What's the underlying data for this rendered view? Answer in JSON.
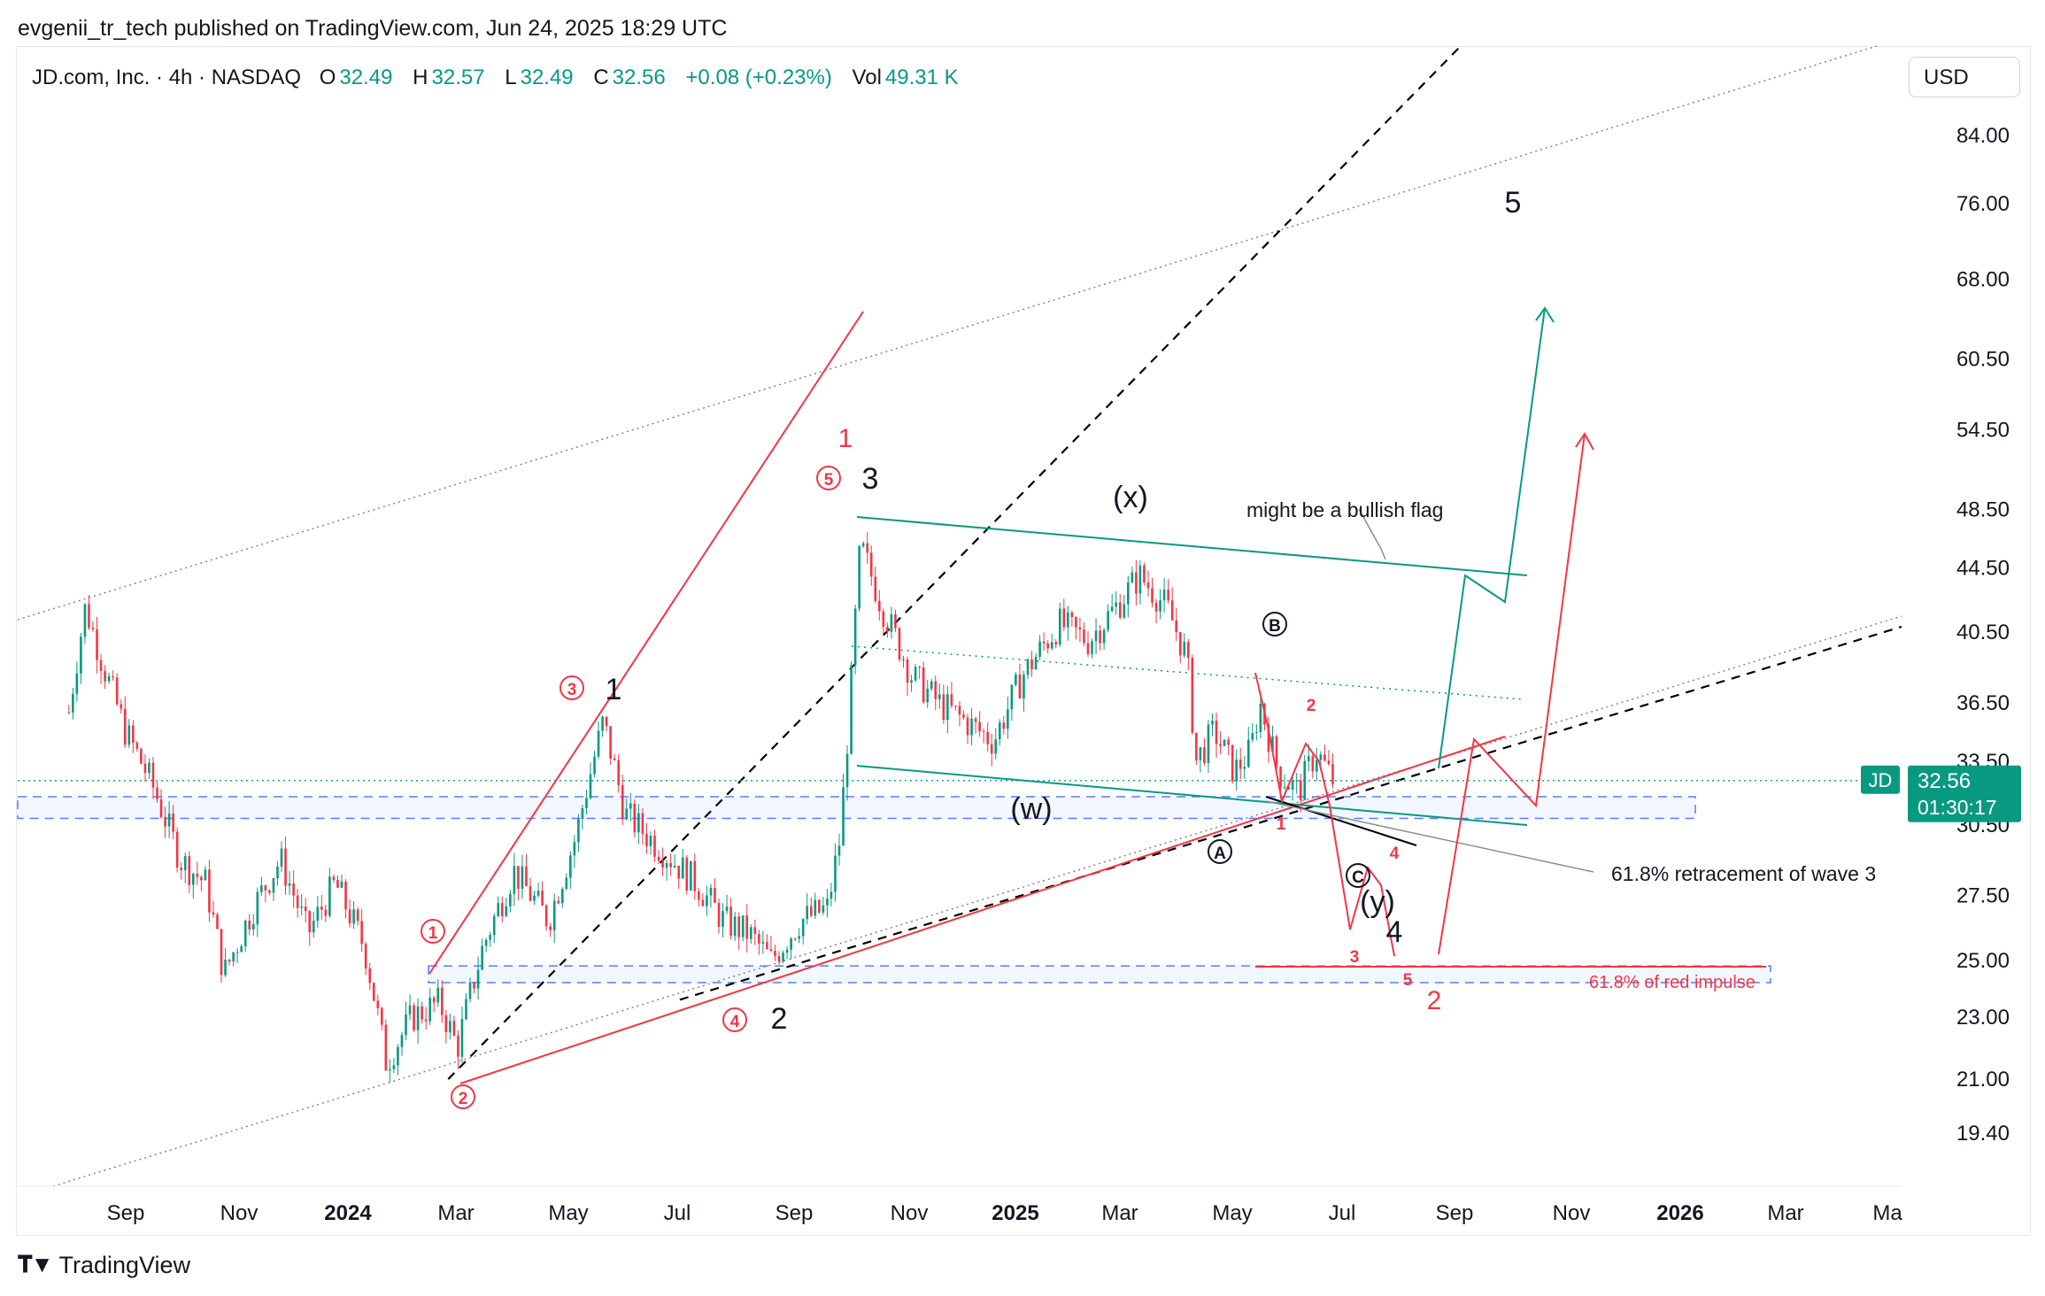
{
  "publish_line": "evgenii_tr_tech published on TradingView.com, Jun 24, 2025 18:29 UTC",
  "legend": {
    "symbol": "JD.com, Inc. · 4h · NASDAQ",
    "open_label": "O",
    "open": "32.49",
    "high_label": "H",
    "high": "32.57",
    "low_label": "L",
    "low": "32.49",
    "close_label": "C",
    "close": "32.56",
    "change": "+0.08 (+0.23%)",
    "vol_label": "Vol",
    "vol": "49.31 K"
  },
  "currency_button": "USD",
  "brand": "TradingView",
  "colors": {
    "up": "#089981",
    "down": "#f23645",
    "red_wave": "#f23645",
    "teal": "#089981",
    "blue_zone": "#2962ff"
  },
  "chart_data": {
    "type": "candlestick",
    "timeframe": "4h",
    "y_scale": "log",
    "ylim": [
      18.0,
      93.0
    ],
    "y_ticks": [
      "84.00",
      "76.00",
      "68.00",
      "60.50",
      "54.50",
      "48.50",
      "44.50",
      "40.50",
      "36.50",
      "33.50",
      "30.50",
      "27.50",
      "25.00",
      "23.00",
      "21.00",
      "19.40"
    ],
    "x_ticks": [
      "Sep",
      "Nov",
      "2024",
      "Mar",
      "May",
      "Jul",
      "Sep",
      "Nov",
      "2025",
      "Mar",
      "May",
      "Jul",
      "Sep",
      "Nov",
      "2026",
      "Mar",
      "Ma"
    ],
    "bold_x_ticks": [
      "2024",
      "2025",
      "2026"
    ],
    "last_price_label": {
      "symbol": "JD",
      "price": "32.56",
      "countdown": "01:30:17"
    },
    "price_path": [
      [
        "2023-08-01",
        36.0
      ],
      [
        "2023-08-10",
        42.0
      ],
      [
        "2023-08-20",
        38.5
      ],
      [
        "2023-09-01",
        35.0
      ],
      [
        "2023-09-15",
        32.5
      ],
      [
        "2023-10-01",
        29.0
      ],
      [
        "2023-10-15",
        28.0
      ],
      [
        "2023-10-25",
        24.5
      ],
      [
        "2023-11-10",
        27.0
      ],
      [
        "2023-11-25",
        29.0
      ],
      [
        "2023-12-10",
        26.0
      ],
      [
        "2023-12-25",
        28.0
      ],
      [
        "2024-01-10",
        25.5
      ],
      [
        "2024-01-22",
        21.5
      ],
      [
        "2024-02-05",
        23.0
      ],
      [
        "2024-02-20",
        23.5
      ],
      [
        "2024-03-01",
        22.0
      ],
      [
        "2024-03-15",
        25.5
      ],
      [
        "2024-04-01",
        28.5
      ],
      [
        "2024-04-20",
        26.5
      ],
      [
        "2024-05-05",
        30.0
      ],
      [
        "2024-05-20",
        35.5
      ],
      [
        "2024-06-01",
        31.0
      ],
      [
        "2024-06-20",
        29.5
      ],
      [
        "2024-07-10",
        28.0
      ],
      [
        "2024-07-25",
        26.5
      ],
      [
        "2024-08-08",
        26.0
      ],
      [
        "2024-08-20",
        25.0
      ],
      [
        "2024-09-05",
        26.5
      ],
      [
        "2024-09-20",
        27.0
      ],
      [
        "2024-09-27",
        30.0
      ],
      [
        "2024-10-02",
        36.0
      ],
      [
        "2024-10-08",
        46.0
      ],
      [
        "2024-10-20",
        42.0
      ],
      [
        "2024-11-05",
        38.0
      ],
      [
        "2024-11-20",
        36.5
      ],
      [
        "2024-12-05",
        35.5
      ],
      [
        "2024-12-20",
        34.5
      ],
      [
        "2025-01-05",
        38.0
      ],
      [
        "2025-01-25",
        41.0
      ],
      [
        "2025-02-10",
        40.0
      ],
      [
        "2025-02-25",
        42.0
      ],
      [
        "2025-03-10",
        44.0
      ],
      [
        "2025-03-25",
        42.0
      ],
      [
        "2025-04-05",
        39.0
      ],
      [
        "2025-04-10",
        33.5
      ],
      [
        "2025-04-20",
        35.0
      ],
      [
        "2025-05-01",
        33.0
      ],
      [
        "2025-05-10",
        34.0
      ],
      [
        "2025-05-15",
        36.5
      ],
      [
        "2025-05-25",
        33.0
      ],
      [
        "2025-06-05",
        32.0
      ],
      [
        "2025-06-15",
        34.0
      ],
      [
        "2025-06-24",
        32.56
      ]
    ],
    "annotations": [
      {
        "text": "1",
        "color": "black",
        "kind": "wave"
      },
      {
        "text": "2",
        "color": "black",
        "kind": "wave"
      },
      {
        "text": "3",
        "color": "black",
        "kind": "wave"
      },
      {
        "text": "4",
        "color": "black",
        "kind": "wave"
      },
      {
        "text": "5",
        "color": "black",
        "kind": "wave"
      },
      {
        "text": "(w)",
        "color": "black",
        "kind": "wave"
      },
      {
        "text": "(x)",
        "color": "black",
        "kind": "wave"
      },
      {
        "text": "(y)",
        "color": "black",
        "kind": "wave"
      },
      {
        "text": "A",
        "color": "black",
        "kind": "circled"
      },
      {
        "text": "B",
        "color": "black",
        "kind": "circled"
      },
      {
        "text": "C",
        "color": "black",
        "kind": "circled"
      },
      {
        "text": "1",
        "color": "red",
        "kind": "circled"
      },
      {
        "text": "2",
        "color": "red",
        "kind": "circled"
      },
      {
        "text": "3",
        "color": "red",
        "kind": "circled"
      },
      {
        "text": "4",
        "color": "red",
        "kind": "circled"
      },
      {
        "text": "5",
        "color": "red",
        "kind": "circled"
      },
      {
        "text": "1",
        "color": "red",
        "kind": "wave"
      },
      {
        "text": "2",
        "color": "red",
        "kind": "wave"
      },
      {
        "text": "1",
        "color": "red",
        "kind": "subwave"
      },
      {
        "text": "2",
        "color": "red",
        "kind": "subwave"
      },
      {
        "text": "3",
        "color": "red",
        "kind": "subwave"
      },
      {
        "text": "4",
        "color": "red",
        "kind": "subwave"
      },
      {
        "text": "5",
        "color": "red",
        "kind": "subwave"
      },
      {
        "text": "might be a bullish flag",
        "color": "black",
        "kind": "note"
      },
      {
        "text": "61.8% retracement of wave 3",
        "color": "black",
        "kind": "note"
      },
      {
        "text": "61.8% of red impulse",
        "color": "red",
        "kind": "note"
      }
    ],
    "zones": [
      {
        "name": "61.8% retracement of wave 3",
        "low": 30.8,
        "high": 31.8
      },
      {
        "name": "61.8% of red impulse",
        "low": 24.2,
        "high": 24.8
      }
    ],
    "horizontal_lines": [
      {
        "name": "last price",
        "value": 32.56
      }
    ],
    "grid": false,
    "legend_placement": "top-left"
  }
}
